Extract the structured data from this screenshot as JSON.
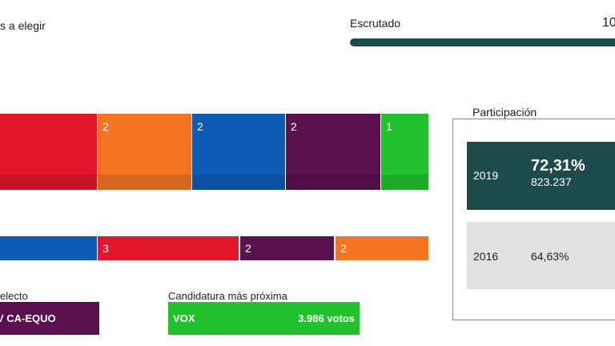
{
  "header": {
    "seats_label": "s a elegir",
    "scrutiny_label": "Escrutado",
    "scrutiny_value": "10"
  },
  "seats_row_1": [
    "2",
    "2",
    "2",
    "1"
  ],
  "seats_row_2": [
    "3",
    "2",
    "2"
  ],
  "elected": {
    "label": "electo",
    "name": "V CA-EQUO"
  },
  "closest": {
    "label": "Candidatura más próxima",
    "name": "VOX",
    "votes": "3.986 votos"
  },
  "participation": {
    "title": "Participación",
    "rows": [
      {
        "year": "2019",
        "percent": "72,31%",
        "votes": "823.237"
      },
      {
        "year": "2016",
        "percent": "64,63%"
      }
    ]
  }
}
